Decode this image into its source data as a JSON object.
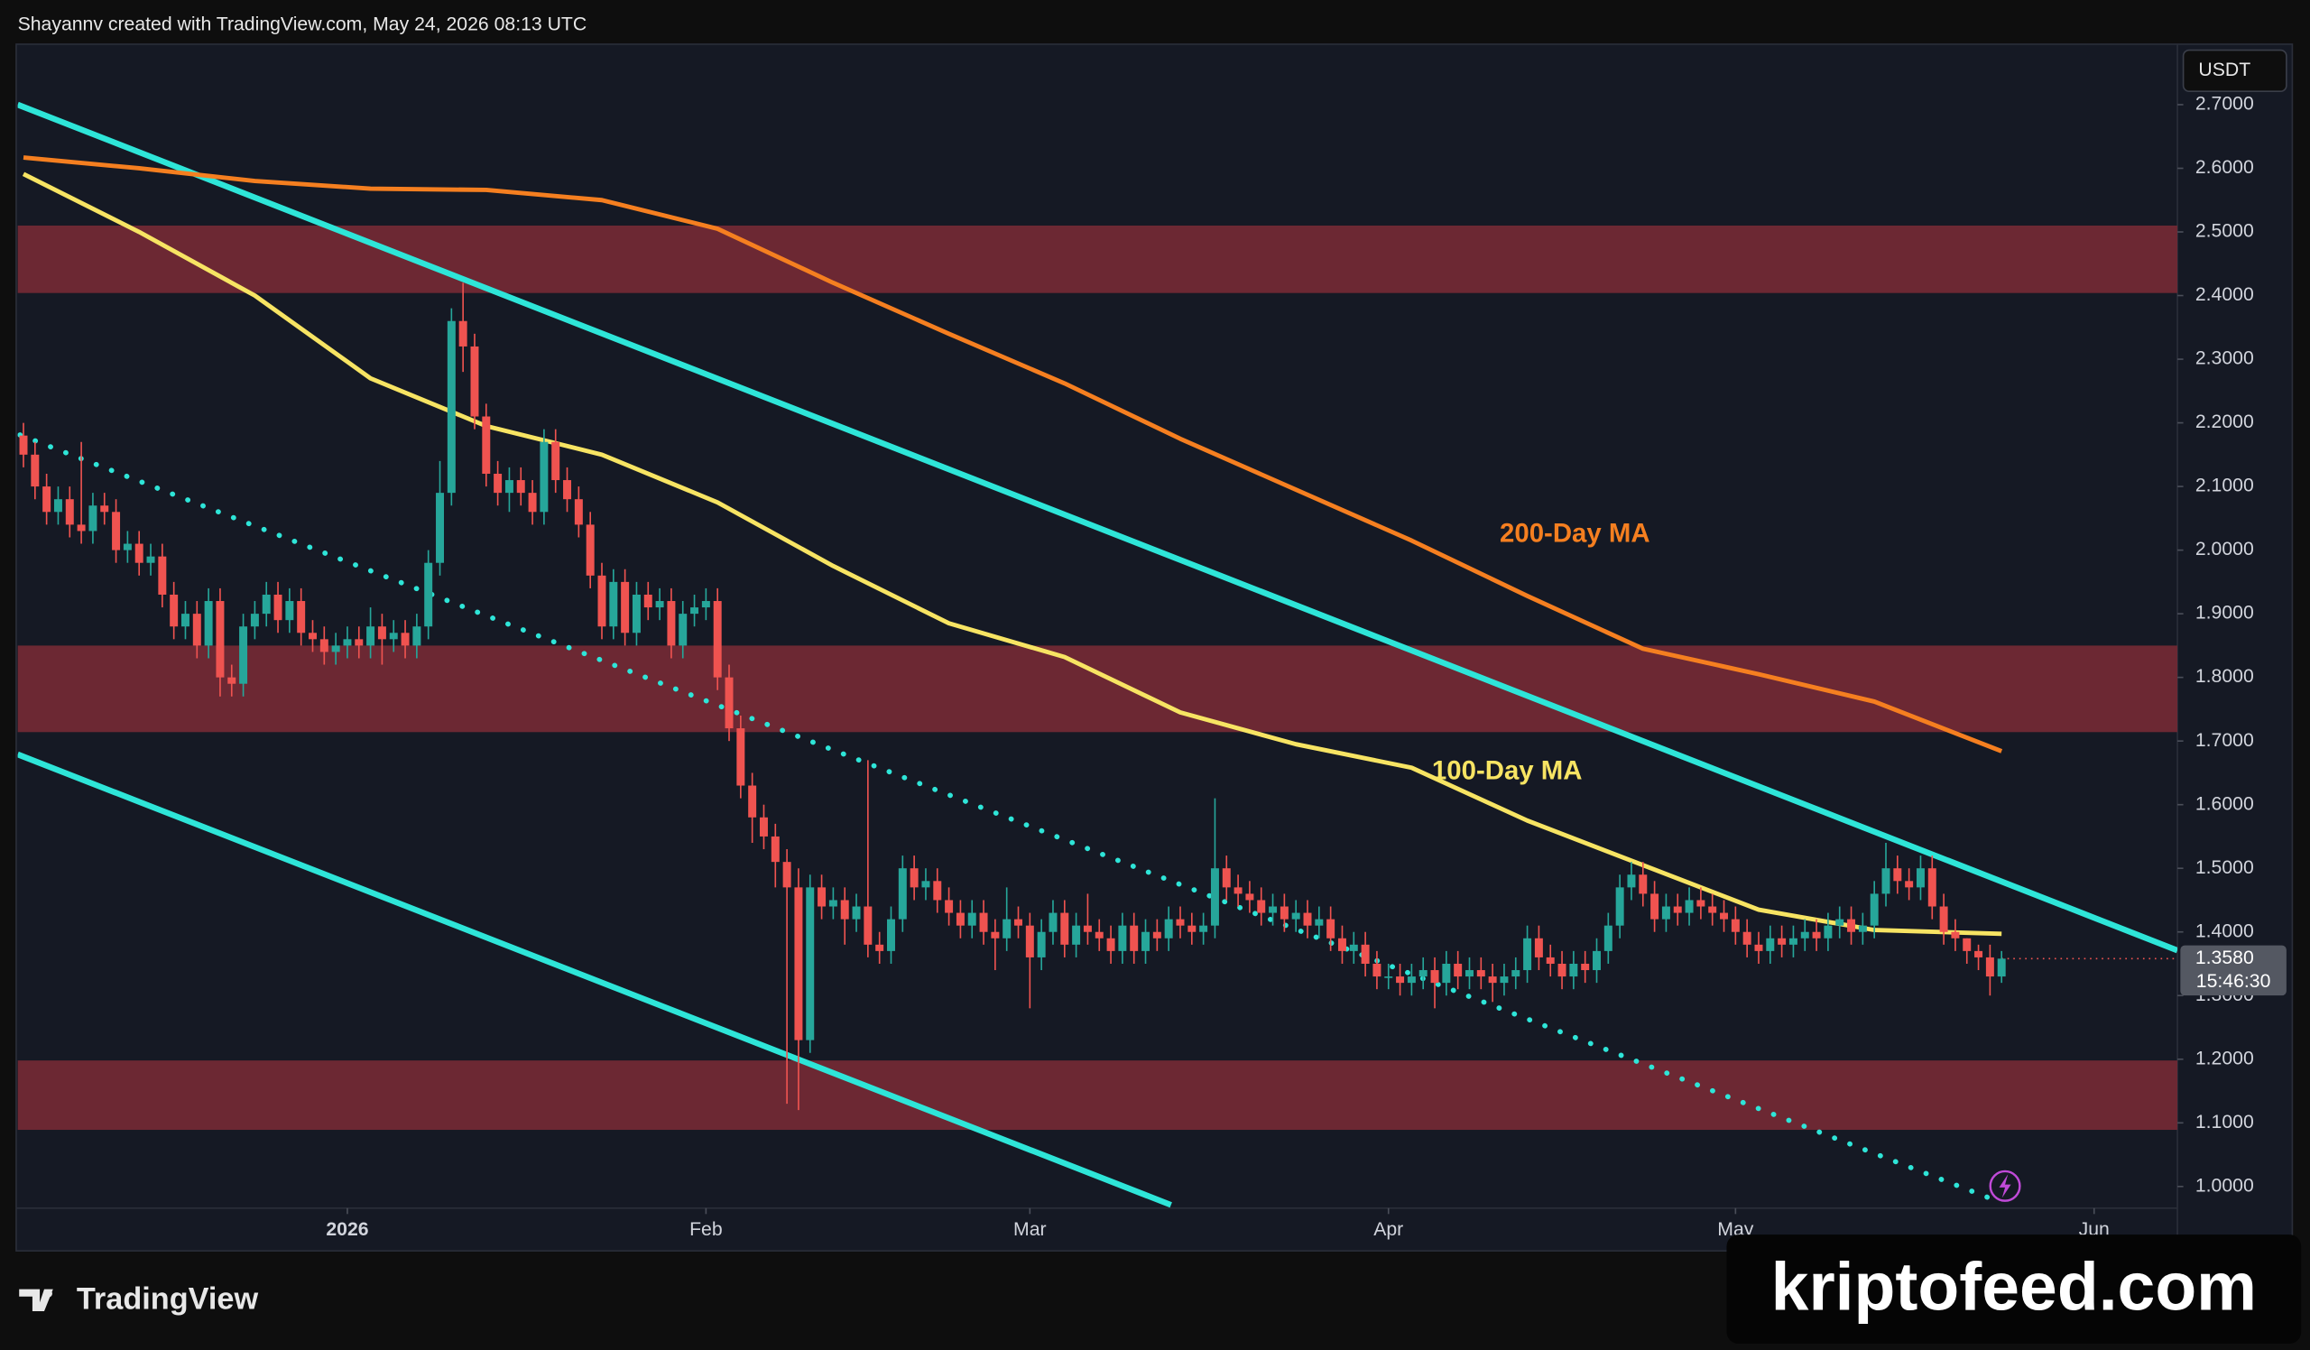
{
  "header": "Shayannv created with TradingView.com, May 24, 2026 08:13 UTC",
  "logo": "TradingView",
  "watermark": "kriptofeed.com",
  "chart_data": {
    "type": "candlestick",
    "currency": "USDT",
    "xlim": [
      -0.5,
      186.2
    ],
    "ylim": [
      0.966,
      2.795
    ],
    "xticks": [
      {
        "value": 28,
        "label": "2026"
      },
      {
        "value": 59,
        "label": "Feb"
      },
      {
        "value": 87,
        "label": "Mar"
      },
      {
        "value": 118,
        "label": "Apr"
      },
      {
        "value": 148,
        "label": "May"
      },
      {
        "value": 179,
        "label": "Jun"
      }
    ],
    "yticks": [
      {
        "value": 1.0,
        "label": "1.0000"
      },
      {
        "value": 1.1,
        "label": "1.1000"
      },
      {
        "value": 1.2,
        "label": "1.2000"
      },
      {
        "value": 1.3,
        "label": "1.3000"
      },
      {
        "value": 1.4,
        "label": "1.4000"
      },
      {
        "value": 1.5,
        "label": "1.5000"
      },
      {
        "value": 1.6,
        "label": "1.6000"
      },
      {
        "value": 1.7,
        "label": "1.7000"
      },
      {
        "value": 1.8,
        "label": "1.8000"
      },
      {
        "value": 1.9,
        "label": "1.9000"
      },
      {
        "value": 2.0,
        "label": "2.0000"
      },
      {
        "value": 2.1,
        "label": "2.1000"
      },
      {
        "value": 2.2,
        "label": "2.2000"
      },
      {
        "value": 2.3,
        "label": "2.3000"
      },
      {
        "value": 2.4,
        "label": "2.4000"
      },
      {
        "value": 2.5,
        "label": "2.5000"
      },
      {
        "value": 2.6,
        "label": "2.6000"
      },
      {
        "value": 2.7,
        "label": "2.7000"
      }
    ],
    "up_color": "#26a69a",
    "down_color": "#ef5350",
    "candles": [
      [
        2.18,
        2.2,
        2.13,
        2.15
      ],
      [
        2.15,
        2.17,
        2.08,
        2.1
      ],
      [
        2.1,
        2.12,
        2.04,
        2.06
      ],
      [
        2.06,
        2.1,
        2.04,
        2.08
      ],
      [
        2.08,
        2.1,
        2.02,
        2.04
      ],
      [
        2.04,
        2.17,
        2.01,
        2.03
      ],
      [
        2.03,
        2.09,
        2.01,
        2.07
      ],
      [
        2.07,
        2.09,
        2.04,
        2.06
      ],
      [
        2.06,
        2.08,
        1.98,
        2.0
      ],
      [
        2.0,
        2.03,
        1.98,
        2.01
      ],
      [
        2.01,
        2.03,
        1.96,
        1.98
      ],
      [
        1.98,
        2.01,
        1.96,
        1.99
      ],
      [
        1.99,
        2.01,
        1.91,
        1.93
      ],
      [
        1.93,
        1.95,
        1.86,
        1.88
      ],
      [
        1.88,
        1.92,
        1.86,
        1.9
      ],
      [
        1.9,
        1.92,
        1.83,
        1.85
      ],
      [
        1.85,
        1.94,
        1.83,
        1.92
      ],
      [
        1.92,
        1.94,
        1.77,
        1.8
      ],
      [
        1.8,
        1.82,
        1.77,
        1.79
      ],
      [
        1.79,
        1.9,
        1.77,
        1.88
      ],
      [
        1.88,
        1.92,
        1.86,
        1.9
      ],
      [
        1.9,
        1.95,
        1.88,
        1.93
      ],
      [
        1.93,
        1.95,
        1.87,
        1.89
      ],
      [
        1.89,
        1.94,
        1.87,
        1.92
      ],
      [
        1.92,
        1.94,
        1.85,
        1.87
      ],
      [
        1.87,
        1.89,
        1.84,
        1.86
      ],
      [
        1.86,
        1.88,
        1.82,
        1.84
      ],
      [
        1.84,
        1.87,
        1.82,
        1.85
      ],
      [
        1.85,
        1.88,
        1.83,
        1.86
      ],
      [
        1.86,
        1.88,
        1.83,
        1.85
      ],
      [
        1.85,
        1.91,
        1.83,
        1.88
      ],
      [
        1.88,
        1.9,
        1.82,
        1.86
      ],
      [
        1.86,
        1.89,
        1.84,
        1.87
      ],
      [
        1.87,
        1.89,
        1.83,
        1.85
      ],
      [
        1.85,
        1.9,
        1.83,
        1.88
      ],
      [
        1.88,
        2.0,
        1.86,
        1.98
      ],
      [
        1.98,
        2.14,
        1.96,
        2.09
      ],
      [
        2.09,
        2.38,
        2.07,
        2.36
      ],
      [
        2.36,
        2.42,
        2.28,
        2.32
      ],
      [
        2.32,
        2.34,
        2.19,
        2.21
      ],
      [
        2.21,
        2.23,
        2.1,
        2.12
      ],
      [
        2.12,
        2.14,
        2.07,
        2.09
      ],
      [
        2.09,
        2.13,
        2.06,
        2.11
      ],
      [
        2.11,
        2.13,
        2.07,
        2.09
      ],
      [
        2.09,
        2.11,
        2.04,
        2.06
      ],
      [
        2.06,
        2.19,
        2.04,
        2.17
      ],
      [
        2.17,
        2.19,
        2.09,
        2.11
      ],
      [
        2.11,
        2.13,
        2.06,
        2.08
      ],
      [
        2.08,
        2.1,
        2.02,
        2.04
      ],
      [
        2.04,
        2.06,
        1.94,
        1.96
      ],
      [
        1.96,
        1.98,
        1.86,
        1.88
      ],
      [
        1.88,
        1.97,
        1.86,
        1.95
      ],
      [
        1.95,
        1.97,
        1.85,
        1.87
      ],
      [
        1.87,
        1.95,
        1.85,
        1.93
      ],
      [
        1.93,
        1.95,
        1.89,
        1.91
      ],
      [
        1.91,
        1.94,
        1.89,
        1.92
      ],
      [
        1.92,
        1.94,
        1.83,
        1.85
      ],
      [
        1.85,
        1.92,
        1.83,
        1.9
      ],
      [
        1.9,
        1.93,
        1.88,
        1.91
      ],
      [
        1.91,
        1.94,
        1.89,
        1.92
      ],
      [
        1.92,
        1.94,
        1.78,
        1.8
      ],
      [
        1.8,
        1.82,
        1.7,
        1.72
      ],
      [
        1.72,
        1.74,
        1.61,
        1.63
      ],
      [
        1.63,
        1.65,
        1.54,
        1.58
      ],
      [
        1.58,
        1.6,
        1.53,
        1.55
      ],
      [
        1.55,
        1.57,
        1.47,
        1.51
      ],
      [
        1.51,
        1.53,
        1.13,
        1.47
      ],
      [
        1.47,
        1.5,
        1.12,
        1.23
      ],
      [
        1.23,
        1.49,
        1.21,
        1.47
      ],
      [
        1.47,
        1.49,
        1.42,
        1.44
      ],
      [
        1.44,
        1.47,
        1.42,
        1.45
      ],
      [
        1.45,
        1.47,
        1.38,
        1.42
      ],
      [
        1.42,
        1.46,
        1.4,
        1.44
      ],
      [
        1.44,
        1.67,
        1.36,
        1.38
      ],
      [
        1.38,
        1.4,
        1.35,
        1.37
      ],
      [
        1.37,
        1.44,
        1.35,
        1.42
      ],
      [
        1.42,
        1.52,
        1.4,
        1.5
      ],
      [
        1.5,
        1.52,
        1.45,
        1.47
      ],
      [
        1.47,
        1.5,
        1.45,
        1.48
      ],
      [
        1.48,
        1.5,
        1.43,
        1.45
      ],
      [
        1.45,
        1.47,
        1.41,
        1.43
      ],
      [
        1.43,
        1.45,
        1.39,
        1.41
      ],
      [
        1.41,
        1.45,
        1.39,
        1.43
      ],
      [
        1.43,
        1.45,
        1.38,
        1.4
      ],
      [
        1.4,
        1.42,
        1.34,
        1.39
      ],
      [
        1.39,
        1.47,
        1.37,
        1.42
      ],
      [
        1.42,
        1.44,
        1.39,
        1.41
      ],
      [
        1.41,
        1.43,
        1.28,
        1.36
      ],
      [
        1.36,
        1.42,
        1.34,
        1.4
      ],
      [
        1.4,
        1.45,
        1.38,
        1.43
      ],
      [
        1.43,
        1.45,
        1.36,
        1.38
      ],
      [
        1.38,
        1.43,
        1.36,
        1.41
      ],
      [
        1.41,
        1.46,
        1.38,
        1.4
      ],
      [
        1.4,
        1.42,
        1.37,
        1.39
      ],
      [
        1.39,
        1.41,
        1.35,
        1.37
      ],
      [
        1.37,
        1.43,
        1.35,
        1.41
      ],
      [
        1.41,
        1.43,
        1.35,
        1.37
      ],
      [
        1.37,
        1.42,
        1.35,
        1.4
      ],
      [
        1.4,
        1.42,
        1.37,
        1.39
      ],
      [
        1.39,
        1.44,
        1.37,
        1.42
      ],
      [
        1.42,
        1.44,
        1.39,
        1.41
      ],
      [
        1.41,
        1.43,
        1.38,
        1.4
      ],
      [
        1.4,
        1.43,
        1.38,
        1.41
      ],
      [
        1.41,
        1.61,
        1.39,
        1.5
      ],
      [
        1.5,
        1.52,
        1.45,
        1.47
      ],
      [
        1.47,
        1.49,
        1.44,
        1.46
      ],
      [
        1.46,
        1.48,
        1.43,
        1.45
      ],
      [
        1.45,
        1.47,
        1.41,
        1.43
      ],
      [
        1.43,
        1.46,
        1.41,
        1.44
      ],
      [
        1.44,
        1.46,
        1.4,
        1.42
      ],
      [
        1.42,
        1.45,
        1.4,
        1.43
      ],
      [
        1.43,
        1.45,
        1.39,
        1.41
      ],
      [
        1.41,
        1.44,
        1.39,
        1.42
      ],
      [
        1.42,
        1.44,
        1.37,
        1.39
      ],
      [
        1.39,
        1.41,
        1.35,
        1.37
      ],
      [
        1.37,
        1.4,
        1.35,
        1.38
      ],
      [
        1.38,
        1.4,
        1.33,
        1.35
      ],
      [
        1.35,
        1.37,
        1.31,
        1.33
      ],
      [
        1.33,
        1.35,
        1.31,
        1.33
      ],
      [
        1.33,
        1.35,
        1.3,
        1.32
      ],
      [
        1.32,
        1.35,
        1.3,
        1.33
      ],
      [
        1.33,
        1.36,
        1.31,
        1.34
      ],
      [
        1.34,
        1.36,
        1.28,
        1.32
      ],
      [
        1.32,
        1.37,
        1.3,
        1.35
      ],
      [
        1.35,
        1.37,
        1.31,
        1.33
      ],
      [
        1.33,
        1.36,
        1.31,
        1.34
      ],
      [
        1.34,
        1.36,
        1.31,
        1.33
      ],
      [
        1.33,
        1.35,
        1.29,
        1.32
      ],
      [
        1.32,
        1.35,
        1.3,
        1.33
      ],
      [
        1.33,
        1.36,
        1.31,
        1.34
      ],
      [
        1.34,
        1.41,
        1.32,
        1.39
      ],
      [
        1.39,
        1.41,
        1.34,
        1.36
      ],
      [
        1.36,
        1.38,
        1.33,
        1.35
      ],
      [
        1.35,
        1.37,
        1.31,
        1.33
      ],
      [
        1.33,
        1.37,
        1.31,
        1.35
      ],
      [
        1.35,
        1.37,
        1.32,
        1.34
      ],
      [
        1.34,
        1.39,
        1.32,
        1.37
      ],
      [
        1.37,
        1.43,
        1.35,
        1.41
      ],
      [
        1.41,
        1.49,
        1.39,
        1.47
      ],
      [
        1.47,
        1.51,
        1.45,
        1.49
      ],
      [
        1.49,
        1.51,
        1.44,
        1.46
      ],
      [
        1.46,
        1.48,
        1.4,
        1.42
      ],
      [
        1.42,
        1.46,
        1.4,
        1.44
      ],
      [
        1.44,
        1.46,
        1.41,
        1.43
      ],
      [
        1.43,
        1.47,
        1.41,
        1.45
      ],
      [
        1.45,
        1.47,
        1.42,
        1.44
      ],
      [
        1.44,
        1.46,
        1.41,
        1.43
      ],
      [
        1.43,
        1.45,
        1.4,
        1.42
      ],
      [
        1.42,
        1.44,
        1.38,
        1.4
      ],
      [
        1.4,
        1.42,
        1.36,
        1.38
      ],
      [
        1.38,
        1.4,
        1.35,
        1.37
      ],
      [
        1.37,
        1.41,
        1.35,
        1.39
      ],
      [
        1.39,
        1.41,
        1.36,
        1.38
      ],
      [
        1.38,
        1.41,
        1.36,
        1.39
      ],
      [
        1.39,
        1.42,
        1.37,
        1.4
      ],
      [
        1.4,
        1.42,
        1.37,
        1.39
      ],
      [
        1.39,
        1.43,
        1.37,
        1.41
      ],
      [
        1.41,
        1.44,
        1.39,
        1.42
      ],
      [
        1.42,
        1.44,
        1.38,
        1.4
      ],
      [
        1.4,
        1.43,
        1.38,
        1.41
      ],
      [
        1.41,
        1.48,
        1.39,
        1.46
      ],
      [
        1.46,
        1.54,
        1.44,
        1.5
      ],
      [
        1.5,
        1.52,
        1.46,
        1.48
      ],
      [
        1.48,
        1.5,
        1.45,
        1.47
      ],
      [
        1.47,
        1.52,
        1.45,
        1.5
      ],
      [
        1.5,
        1.52,
        1.42,
        1.44
      ],
      [
        1.44,
        1.46,
        1.38,
        1.4
      ],
      [
        1.4,
        1.42,
        1.37,
        1.39
      ],
      [
        1.39,
        1.39,
        1.35,
        1.37
      ],
      [
        1.37,
        1.38,
        1.34,
        1.36
      ],
      [
        1.36,
        1.38,
        1.3,
        1.33
      ],
      [
        1.33,
        1.37,
        1.32,
        1.358
      ]
    ],
    "series": [
      {
        "name": "200-Day MA",
        "color": "#f57f20",
        "x": [
          0,
          10,
          20,
          30,
          40,
          50,
          60,
          70,
          80,
          90,
          100,
          110,
          120,
          130,
          140,
          150,
          160,
          171
        ],
        "values": [
          2.617,
          2.6,
          2.58,
          2.568,
          2.566,
          2.55,
          2.505,
          2.42,
          2.34,
          2.262,
          2.175,
          2.095,
          2.015,
          1.928,
          1.845,
          1.805,
          1.762,
          1.684
        ]
      },
      {
        "name": "100-Day MA",
        "color": "#f7e463",
        "x": [
          0,
          10,
          20,
          30,
          40,
          50,
          60,
          70,
          80,
          90,
          100,
          110,
          120,
          130,
          140,
          150,
          160,
          171
        ],
        "values": [
          2.591,
          2.5,
          2.4,
          2.27,
          2.195,
          2.15,
          2.075,
          1.975,
          1.885,
          1.832,
          1.745,
          1.695,
          1.658,
          1.575,
          1.505,
          1.435,
          1.403,
          1.397
        ]
      }
    ],
    "trendlines": [
      {
        "color": "#2ee5d8",
        "style": "solid",
        "x": [
          -0.5,
          186.2
        ],
        "values": [
          2.7,
          1.371
        ]
      },
      {
        "color": "#2ee5d8",
        "style": "solid",
        "x": [
          -0.5,
          99.2
        ],
        "values": [
          1.679,
          0.971
        ]
      },
      {
        "color": "#2ee5d8",
        "style": "dotted",
        "x": [
          -0.3,
          170.5
        ],
        "values": [
          2.181,
          0.978
        ]
      }
    ],
    "zones": [
      {
        "color": "#6c2833",
        "from": 2.404,
        "to": 2.51
      },
      {
        "color": "#6c2833",
        "from": 1.714,
        "to": 1.85
      },
      {
        "color": "#6c2833",
        "from": 1.089,
        "to": 1.198
      }
    ],
    "last_price": {
      "value": 1.358,
      "label": "1.3580"
    },
    "countdown": "15:46:30"
  }
}
